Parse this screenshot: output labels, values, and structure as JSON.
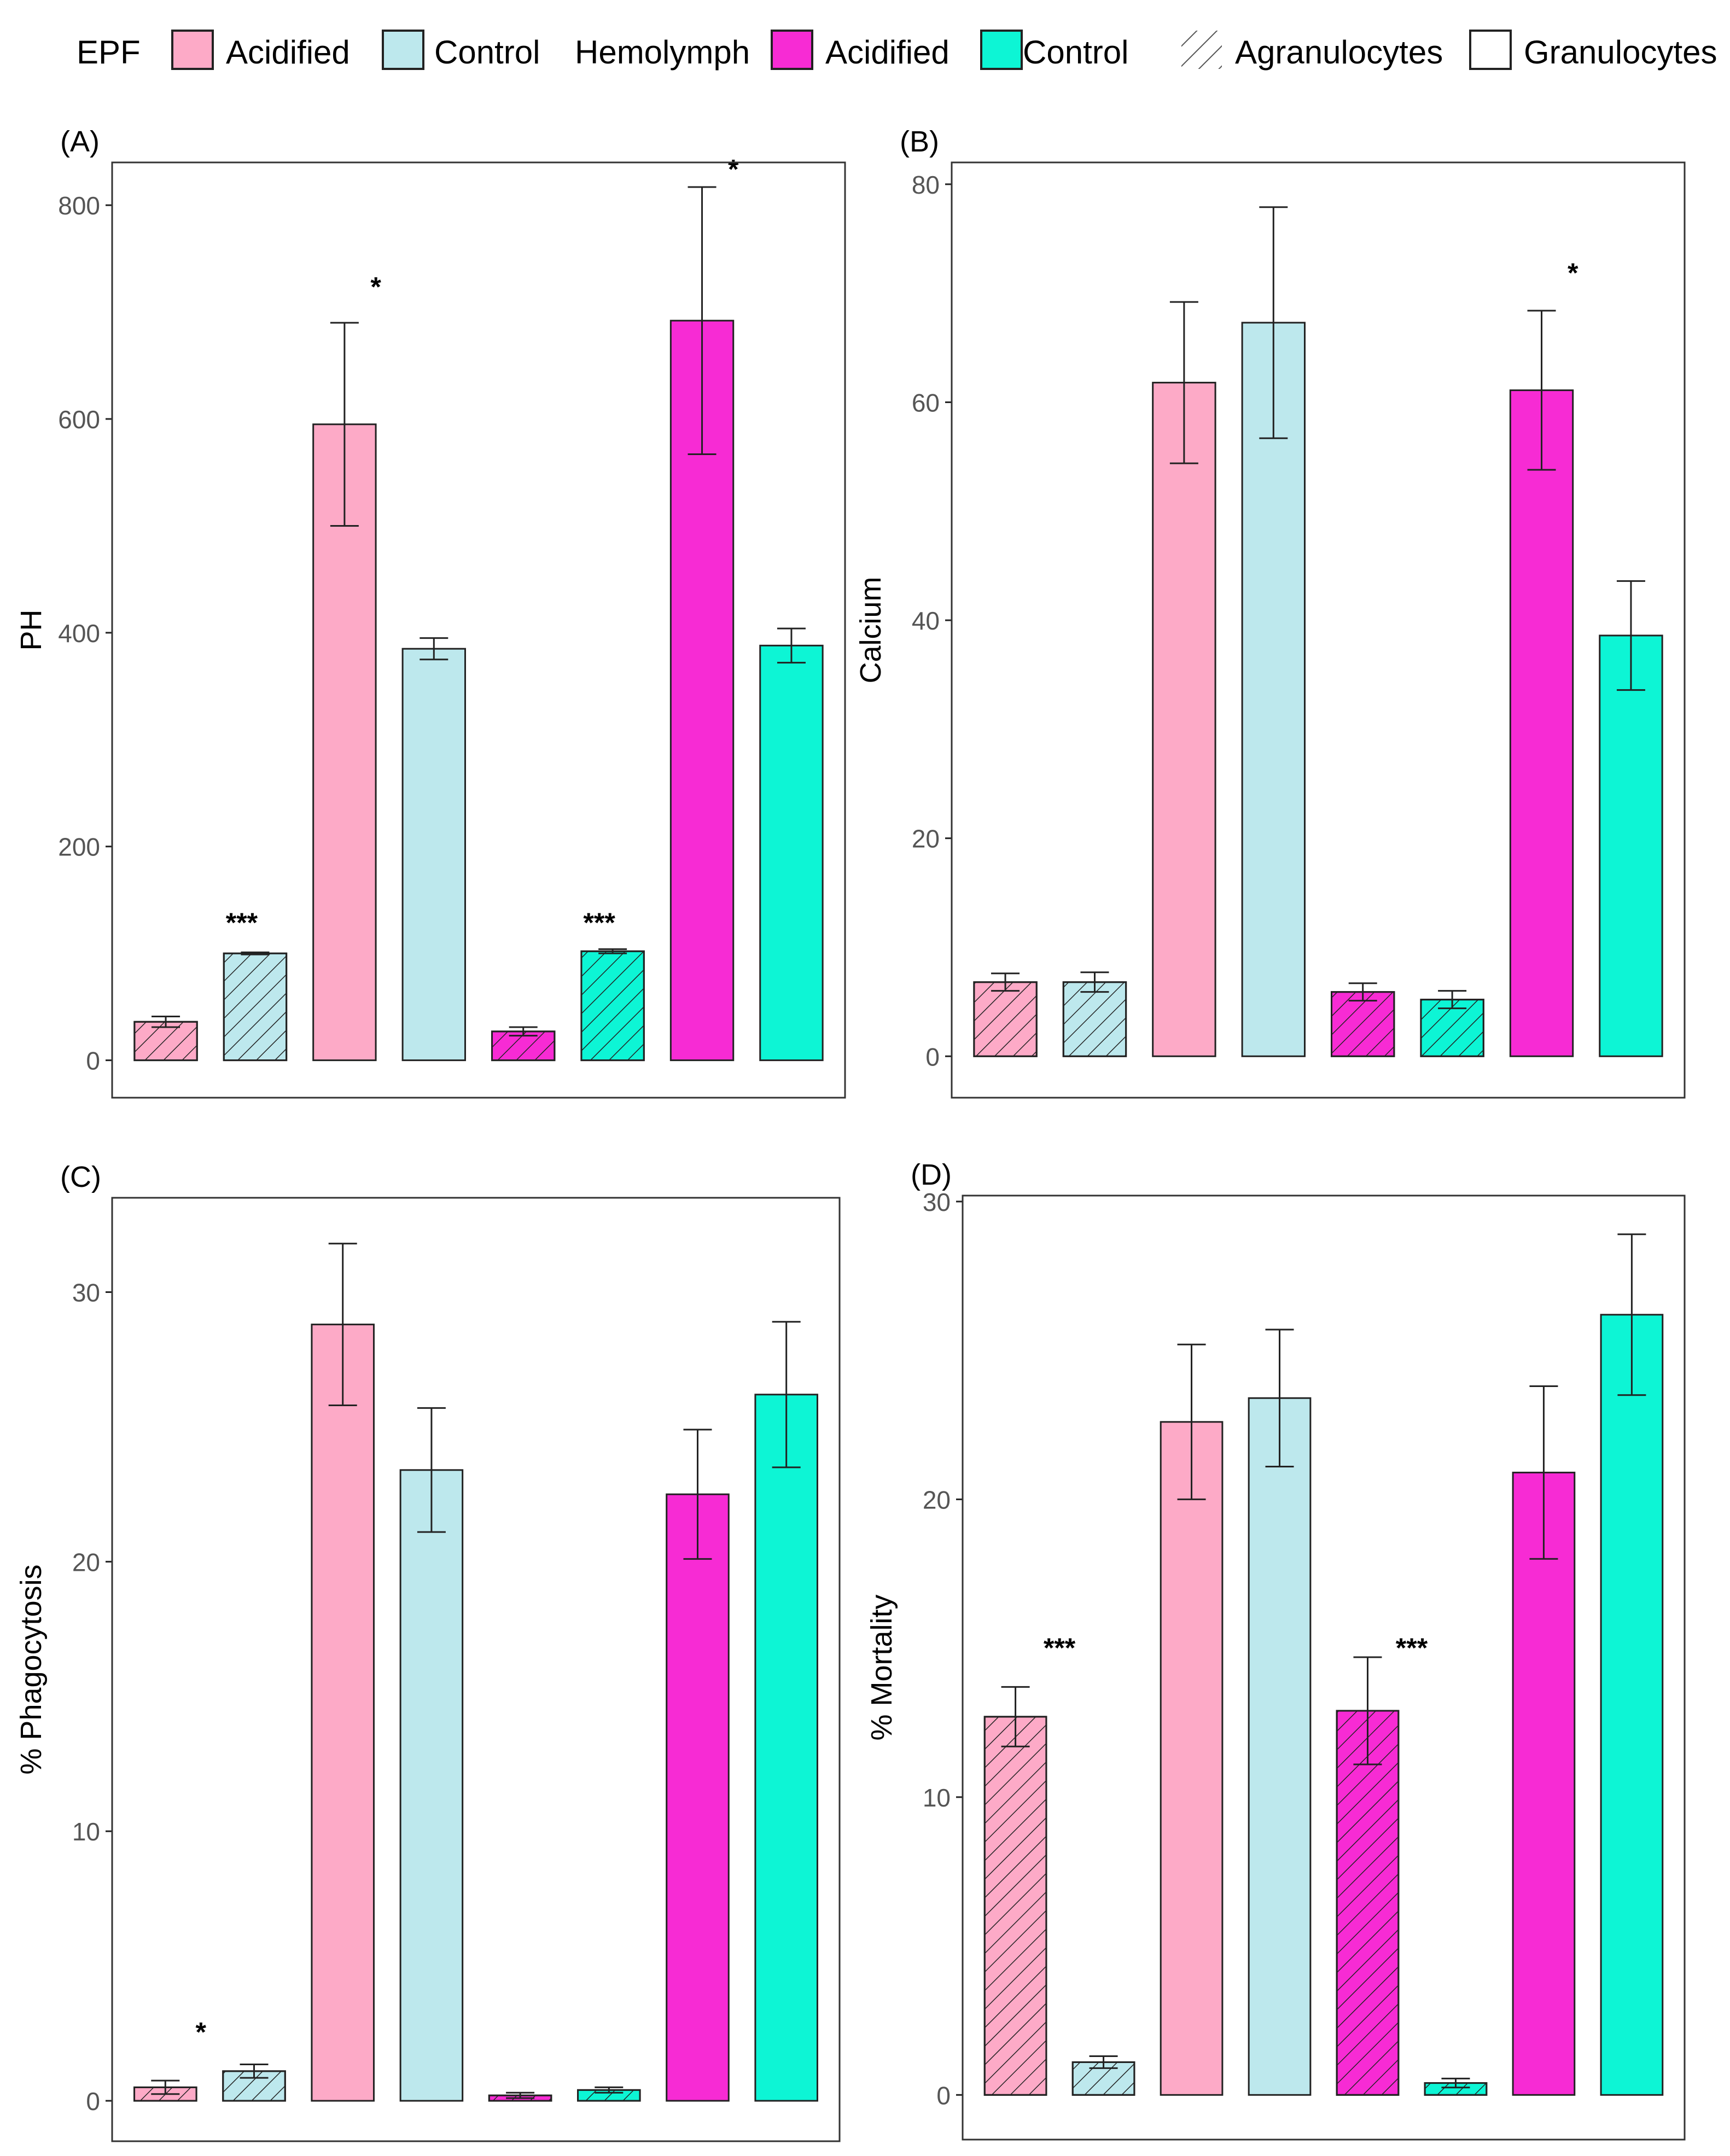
{
  "legend": {
    "epf_title": "EPF",
    "hemolymph_title": "Hemolymph",
    "items": [
      {
        "group": "EPF",
        "label": "Acidified",
        "color": "#fdaac7"
      },
      {
        "group": "EPF",
        "label": "Control",
        "color": "#bde8ed"
      },
      {
        "group": "Hemolymph",
        "label": "Acidified",
        "color": "#f72bd4"
      },
      {
        "group": "Hemolymph",
        "label": "Control",
        "color": "#0df5d5"
      }
    ],
    "patterns": [
      {
        "label": "Agranulocytes",
        "fill": "hatched"
      },
      {
        "label": "Granulocytes",
        "fill": "plain"
      }
    ]
  },
  "colors": {
    "epf_acidified": "#fdaac7",
    "epf_control": "#bde8ed",
    "hemo_acidified": "#f72bd4",
    "hemo_control": "#0df5d5",
    "outline": "#222222",
    "axis_text": "#555555"
  },
  "chart_data": [
    {
      "type": "bar",
      "panel": "(A)",
      "title": "",
      "xlabel": "",
      "ylabel": "PH",
      "ylim": [
        -35,
        840
      ],
      "yticks": [
        0,
        200,
        400,
        600,
        800
      ],
      "grid": false,
      "bars": [
        {
          "group": "EPF",
          "treatment": "Acidified",
          "cell": "Agranulocytes",
          "value": 36,
          "err": 5,
          "color": "#fdaac7",
          "hatched": true
        },
        {
          "group": "EPF",
          "treatment": "Control",
          "cell": "Agranulocytes",
          "value": 100,
          "err": 1,
          "color": "#bde8ed",
          "hatched": true
        },
        {
          "group": "EPF",
          "treatment": "Acidified",
          "cell": "Granulocytes",
          "value": 595,
          "err": 95,
          "color": "#fdaac7",
          "hatched": false
        },
        {
          "group": "EPF",
          "treatment": "Control",
          "cell": "Granulocytes",
          "value": 385,
          "err": 10,
          "color": "#bde8ed",
          "hatched": false
        },
        {
          "group": "Hemolymph",
          "treatment": "Acidified",
          "cell": "Agranulocytes",
          "value": 27,
          "err": 4,
          "color": "#f72bd4",
          "hatched": true
        },
        {
          "group": "Hemolymph",
          "treatment": "Control",
          "cell": "Agranulocytes",
          "value": 102,
          "err": 2,
          "color": "#0df5d5",
          "hatched": true
        },
        {
          "group": "Hemolymph",
          "treatment": "Acidified",
          "cell": "Granulocytes",
          "value": 692,
          "err": 125,
          "color": "#f72bd4",
          "hatched": false
        },
        {
          "group": "Hemolymph",
          "treatment": "Control",
          "cell": "Granulocytes",
          "value": 388,
          "err": 16,
          "color": "#0df5d5",
          "hatched": false
        }
      ],
      "annotations": [
        {
          "text": "***",
          "bar": 1,
          "at": 120,
          "dx": -0.15
        },
        {
          "text": "*",
          "bar": 2,
          "at": 715,
          "dx": 0.35
        },
        {
          "text": "***",
          "bar": 5,
          "at": 120,
          "dx": -0.15
        },
        {
          "text": "*",
          "bar": 6,
          "at": 825,
          "dx": 0.35
        }
      ]
    },
    {
      "type": "bar",
      "panel": "(B)",
      "title": "",
      "xlabel": "",
      "ylabel": "Calcium",
      "ylim": [
        -3.8,
        82
      ],
      "yticks": [
        0,
        20,
        40,
        60,
        80
      ],
      "grid": false,
      "bars": [
        {
          "group": "EPF",
          "treatment": "Acidified",
          "cell": "Agranulocytes",
          "value": 6.8,
          "err": 0.8,
          "color": "#fdaac7",
          "hatched": true
        },
        {
          "group": "EPF",
          "treatment": "Control",
          "cell": "Agranulocytes",
          "value": 6.8,
          "err": 0.9,
          "color": "#bde8ed",
          "hatched": true
        },
        {
          "group": "EPF",
          "treatment": "Acidified",
          "cell": "Granulocytes",
          "value": 61.8,
          "err": 7.4,
          "color": "#fdaac7",
          "hatched": false
        },
        {
          "group": "EPF",
          "treatment": "Control",
          "cell": "Granulocytes",
          "value": 67.3,
          "err": 10.6,
          "color": "#bde8ed",
          "hatched": false
        },
        {
          "group": "Hemolymph",
          "treatment": "Acidified",
          "cell": "Agranulocytes",
          "value": 5.9,
          "err": 0.8,
          "color": "#f72bd4",
          "hatched": true
        },
        {
          "group": "Hemolymph",
          "treatment": "Control",
          "cell": "Agranulocytes",
          "value": 5.2,
          "err": 0.8,
          "color": "#0df5d5",
          "hatched": true
        },
        {
          "group": "Hemolymph",
          "treatment": "Acidified",
          "cell": "Granulocytes",
          "value": 61.1,
          "err": 7.3,
          "color": "#f72bd4",
          "hatched": false
        },
        {
          "group": "Hemolymph",
          "treatment": "Control",
          "cell": "Granulocytes",
          "value": 38.6,
          "err": 5.0,
          "color": "#0df5d5",
          "hatched": false
        }
      ],
      "annotations": [
        {
          "text": "*",
          "bar": 6,
          "at": 71,
          "dx": 0.35
        }
      ]
    },
    {
      "type": "bar",
      "panel": "(C)",
      "title": "",
      "xlabel": "",
      "ylabel": "% Phagocytosis",
      "ylim": [
        -1.5,
        33.5
      ],
      "yticks": [
        0,
        10,
        20,
        30
      ],
      "grid": false,
      "bars": [
        {
          "group": "EPF",
          "treatment": "Acidified",
          "cell": "Agranulocytes",
          "value": 0.5,
          "err": 0.25,
          "color": "#fdaac7",
          "hatched": true
        },
        {
          "group": "EPF",
          "treatment": "Control",
          "cell": "Agranulocytes",
          "value": 1.1,
          "err": 0.25,
          "color": "#bde8ed",
          "hatched": true
        },
        {
          "group": "EPF",
          "treatment": "Acidified",
          "cell": "Granulocytes",
          "value": 28.8,
          "err": 3.0,
          "color": "#fdaac7",
          "hatched": false
        },
        {
          "group": "EPF",
          "treatment": "Control",
          "cell": "Granulocytes",
          "value": 23.4,
          "err": 2.3,
          "color": "#bde8ed",
          "hatched": false
        },
        {
          "group": "Hemolymph",
          "treatment": "Acidified",
          "cell": "Agranulocytes",
          "value": 0.2,
          "err": 0.1,
          "color": "#f72bd4",
          "hatched": true
        },
        {
          "group": "Hemolymph",
          "treatment": "Control",
          "cell": "Agranulocytes",
          "value": 0.4,
          "err": 0.1,
          "color": "#0df5d5",
          "hatched": true
        },
        {
          "group": "Hemolymph",
          "treatment": "Acidified",
          "cell": "Granulocytes",
          "value": 22.5,
          "err": 2.4,
          "color": "#f72bd4",
          "hatched": false
        },
        {
          "group": "Hemolymph",
          "treatment": "Control",
          "cell": "Granulocytes",
          "value": 26.2,
          "err": 2.7,
          "color": "#0df5d5",
          "hatched": false
        }
      ],
      "annotations": [
        {
          "text": "*",
          "bar": 1,
          "at": 2.2,
          "dx": -0.6
        }
      ]
    },
    {
      "type": "bar",
      "panel": "(D)",
      "title": "",
      "xlabel": "",
      "ylabel": "% Mortality",
      "ylim": [
        -1.5,
        30.2
      ],
      "yticks": [
        0,
        10,
        20,
        30
      ],
      "grid": false,
      "bars": [
        {
          "group": "EPF",
          "treatment": "Acidified",
          "cell": "Agranulocytes",
          "value": 12.7,
          "err": 1.0,
          "color": "#fdaac7",
          "hatched": true
        },
        {
          "group": "EPF",
          "treatment": "Control",
          "cell": "Agranulocytes",
          "value": 1.1,
          "err": 0.2,
          "color": "#bde8ed",
          "hatched": true
        },
        {
          "group": "EPF",
          "treatment": "Acidified",
          "cell": "Granulocytes",
          "value": 22.6,
          "err": 2.6,
          "color": "#fdaac7",
          "hatched": false
        },
        {
          "group": "EPF",
          "treatment": "Control",
          "cell": "Granulocytes",
          "value": 23.4,
          "err": 2.3,
          "color": "#bde8ed",
          "hatched": false
        },
        {
          "group": "Hemolymph",
          "treatment": "Acidified",
          "cell": "Agranulocytes",
          "value": 12.9,
          "err": 1.8,
          "color": "#f72bd4",
          "hatched": true
        },
        {
          "group": "Hemolymph",
          "treatment": "Control",
          "cell": "Agranulocytes",
          "value": 0.4,
          "err": 0.15,
          "color": "#0df5d5",
          "hatched": true
        },
        {
          "group": "Hemolymph",
          "treatment": "Acidified",
          "cell": "Granulocytes",
          "value": 20.9,
          "err": 2.9,
          "color": "#f72bd4",
          "hatched": false
        },
        {
          "group": "Hemolymph",
          "treatment": "Control",
          "cell": "Granulocytes",
          "value": 26.2,
          "err": 2.7,
          "color": "#0df5d5",
          "hatched": false
        }
      ],
      "annotations": [
        {
          "text": "***",
          "bar": 0,
          "at": 14.7,
          "dx": 0.5
        },
        {
          "text": "***",
          "bar": 4,
          "at": 14.7,
          "dx": 0.5
        }
      ]
    }
  ]
}
